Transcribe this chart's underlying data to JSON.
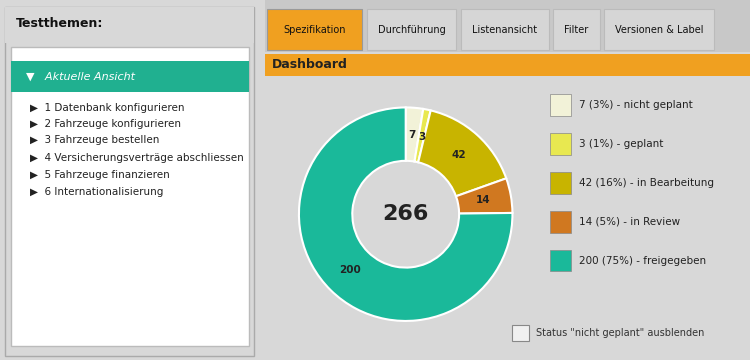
{
  "title_left": "Testthemen:",
  "tree_items": [
    "Aktuelle Ansicht",
    "1 Datenbank konfigurieren",
    "2 Fahrzeuge konfigurieren",
    "3 Fahrzeuge bestellen",
    "4 Versicherungsverträge abschliessen",
    "5 Fahrzeuge finanzieren",
    "6 Internationalisierung"
  ],
  "tabs": [
    "Spezifikation",
    "Durchführung",
    "Listenansicht",
    "Filter",
    "Versionen & Label"
  ],
  "dashboard_title": "Dashboard",
  "donut_values": [
    7,
    3,
    42,
    14,
    200
  ],
  "donut_colors": [
    "#f2f2d8",
    "#e8e850",
    "#c8b400",
    "#d07820",
    "#1ab99a"
  ],
  "donut_labels": [
    "7 (3%) - nicht geplant",
    "3 (1%) - geplant",
    "42 (16%) - in Bearbeitung",
    "14 (5%) - in Review",
    "200 (75%) - freigegeben"
  ],
  "donut_center_text": "266",
  "segment_labels": [
    "7",
    "3",
    "42",
    "14",
    "200"
  ],
  "bg_color": "#d8d8d8",
  "right_bg_color": "#e0e0e0",
  "left_panel_bg": "#ffffff",
  "left_panel_border": "#aaaaaa",
  "tab_bar_bg": "#c8c8c8",
  "tab_active_color": "#f0a020",
  "tab_inactive_color": "#d0d0d0",
  "dashboard_header_color": "#f0a020",
  "tree_highlight_color": "#20b090",
  "tree_title_bg": "#e0e0e0",
  "checkbox_label": "Status \"nicht geplant\" ausblenden"
}
